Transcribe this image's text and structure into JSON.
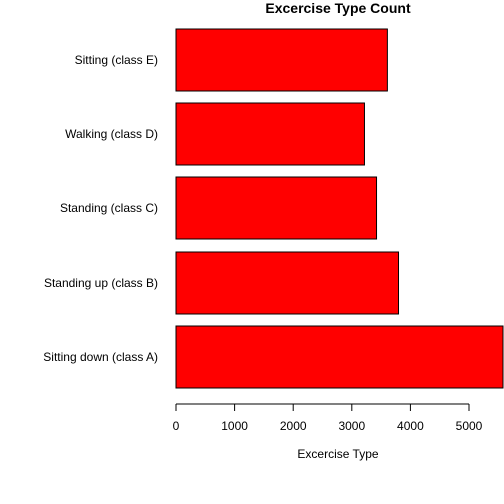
{
  "chart_data": {
    "type": "bar",
    "orientation": "horizontal",
    "title": "Excercise Type Count",
    "xlabel": "Excercise Type",
    "ylabel": "",
    "categories": [
      "Sitting down (class A)",
      "Standing up (class B)",
      "Standing (class C)",
      "Walking (class D)",
      "Sitting (class E)"
    ],
    "values": [
      5580,
      3797,
      3422,
      3216,
      3607
    ],
    "xlim": [
      0,
      5580
    ],
    "xticks": [
      0,
      1000,
      2000,
      3000,
      4000,
      5000
    ],
    "bar_color": "#ff0000",
    "grid": false,
    "legend": "none"
  }
}
